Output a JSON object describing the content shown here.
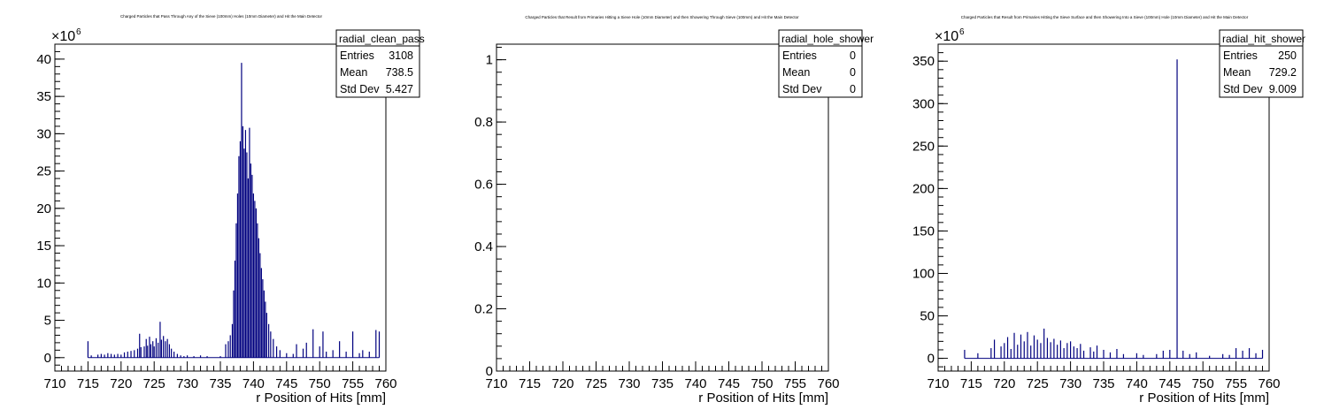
{
  "chart_data": [
    {
      "type": "bar",
      "title": "Charged Particles that Pass Through Any of the Sieve (100mm) Holes (10mm Diameter) and Hit the Main Detector",
      "xlabel": "r Position of Hits [mm]",
      "ylabel": "",
      "multiplier_label": "×10",
      "multiplier_exp": "6",
      "xlim": [
        710,
        760
      ],
      "ylim": [
        -1.8,
        42
      ],
      "x_ticks": [
        "710",
        "715",
        "720",
        "725",
        "730",
        "735",
        "740",
        "745",
        "750",
        "755",
        "760"
      ],
      "y_ticks": [
        "0",
        "5",
        "10",
        "15",
        "20",
        "25",
        "30",
        "35",
        "40"
      ],
      "stats": {
        "name": "radial_clean_pass",
        "rows": [
          {
            "label": "Entries",
            "value": "3108"
          },
          {
            "label": "Mean",
            "value": "738.5"
          },
          {
            "label": "Std Dev",
            "value": "5.427"
          }
        ]
      },
      "bins": [
        [
          715.0,
          2.2
        ],
        [
          715.5,
          0.3
        ],
        [
          716.5,
          0.4
        ],
        [
          717.0,
          0.5
        ],
        [
          717.5,
          0.4
        ],
        [
          718.0,
          0.6
        ],
        [
          718.5,
          0.5
        ],
        [
          719.0,
          0.4
        ],
        [
          719.5,
          0.5
        ],
        [
          720.0,
          0.4
        ],
        [
          720.5,
          0.7
        ],
        [
          721.0,
          0.8
        ],
        [
          721.5,
          0.9
        ],
        [
          722.0,
          1.0
        ],
        [
          722.5,
          1.2
        ],
        [
          722.8,
          3.2
        ],
        [
          723.0,
          1.4
        ],
        [
          723.5,
          1.5
        ],
        [
          723.8,
          2.5
        ],
        [
          724.0,
          1.6
        ],
        [
          724.3,
          2.8
        ],
        [
          724.5,
          1.8
        ],
        [
          724.8,
          2.2
        ],
        [
          725.0,
          1.5
        ],
        [
          725.3,
          2.6
        ],
        [
          725.6,
          2.0
        ],
        [
          725.9,
          4.8
        ],
        [
          726.1,
          2.4
        ],
        [
          726.4,
          2.9
        ],
        [
          726.7,
          2.2
        ],
        [
          727.0,
          2.5
        ],
        [
          727.3,
          1.8
        ],
        [
          727.6,
          1.2
        ],
        [
          728.0,
          0.8
        ],
        [
          728.5,
          0.5
        ],
        [
          729.0,
          0.3
        ],
        [
          729.5,
          0.2
        ],
        [
          730.0,
          0.3
        ],
        [
          731.0,
          0.2
        ],
        [
          732.0,
          0.3
        ],
        [
          733.0,
          0.2
        ],
        [
          735.0,
          0.2
        ],
        [
          735.8,
          1.8
        ],
        [
          736.2,
          2.2
        ],
        [
          736.5,
          3.0
        ],
        [
          736.8,
          4.5
        ],
        [
          737.0,
          9.0
        ],
        [
          737.2,
          13.0
        ],
        [
          737.4,
          18.0
        ],
        [
          737.6,
          22.0
        ],
        [
          737.8,
          27.0
        ],
        [
          738.0,
          29.0
        ],
        [
          738.2,
          39.5
        ],
        [
          738.4,
          31.0
        ],
        [
          738.6,
          28.0
        ],
        [
          738.8,
          30.5
        ],
        [
          739.0,
          27.5
        ],
        [
          739.2,
          24.0
        ],
        [
          739.4,
          30.8
        ],
        [
          739.6,
          26.0
        ],
        [
          739.8,
          24.5
        ],
        [
          740.0,
          22.0
        ],
        [
          740.2,
          21.0
        ],
        [
          740.4,
          20.0
        ],
        [
          740.6,
          18.0
        ],
        [
          740.8,
          16.0
        ],
        [
          741.0,
          14.0
        ],
        [
          741.2,
          12.0
        ],
        [
          741.4,
          10.5
        ],
        [
          741.6,
          9.0
        ],
        [
          741.8,
          7.5
        ],
        [
          742.0,
          6.0
        ],
        [
          742.3,
          4.5
        ],
        [
          742.6,
          3.5
        ],
        [
          743.0,
          2.5
        ],
        [
          743.5,
          1.5
        ],
        [
          744.0,
          1.0
        ],
        [
          745.0,
          0.6
        ],
        [
          746.0,
          0.5
        ],
        [
          746.5,
          1.8
        ],
        [
          747.5,
          1.2
        ],
        [
          748.0,
          2.0
        ],
        [
          749.0,
          3.8
        ],
        [
          750.0,
          1.5
        ],
        [
          750.5,
          3.5
        ],
        [
          751.0,
          0.8
        ],
        [
          752.0,
          1.0
        ],
        [
          753.0,
          2.2
        ],
        [
          754.0,
          0.8
        ],
        [
          755.0,
          3.5
        ],
        [
          756.0,
          0.6
        ],
        [
          756.5,
          1.0
        ],
        [
          757.5,
          0.8
        ],
        [
          758.5,
          3.7
        ],
        [
          759.0,
          3.5
        ]
      ]
    },
    {
      "type": "bar",
      "title": "Charged Particles that Result from Primaries Hitting a Sieve Hole (10mm Diameter) and then Showering Through Sieve (100mm) and Hit the Main Detector",
      "xlabel": "r Position of Hits [mm]",
      "ylabel": "",
      "multiplier_label": "",
      "multiplier_exp": "",
      "xlim": [
        710,
        760
      ],
      "ylim": [
        0,
        1.05
      ],
      "x_ticks": [
        "710",
        "715",
        "720",
        "725",
        "730",
        "735",
        "740",
        "745",
        "750",
        "755",
        "760"
      ],
      "y_ticks": [
        "0",
        "0.2",
        "0.4",
        "0.6",
        "0.8",
        "1"
      ],
      "stats": {
        "name": "radial_hole_shower",
        "rows": [
          {
            "label": "Entries",
            "value": "0"
          },
          {
            "label": "Mean",
            "value": "0"
          },
          {
            "label": "Std Dev",
            "value": "0"
          }
        ]
      },
      "bins": []
    },
    {
      "type": "bar",
      "title": "Charged Particles that Result from Primaries Hitting the Sieve Surface and then Showering Into a Sieve (100mm) Hole (10mm Diameter) and Hit the Main Detector",
      "xlabel": "r Position of Hits [mm]",
      "ylabel": "",
      "multiplier_label": "×10",
      "multiplier_exp": "6",
      "xlim": [
        710,
        760
      ],
      "ylim": [
        -15,
        370
      ],
      "x_ticks": [
        "710",
        "715",
        "720",
        "725",
        "730",
        "735",
        "740",
        "745",
        "750",
        "755",
        "760"
      ],
      "y_ticks": [
        "0",
        "50",
        "100",
        "150",
        "200",
        "250",
        "300",
        "350"
      ],
      "stats": {
        "name": "radial_hit_shower",
        "rows": [
          {
            "label": "Entries",
            "value": "250"
          },
          {
            "label": "Mean",
            "value": "729.2"
          },
          {
            "label": "Std Dev",
            "value": "9.009"
          }
        ]
      },
      "bins": [
        [
          714.0,
          10
        ],
        [
          716.0,
          6
        ],
        [
          718.0,
          12
        ],
        [
          718.5,
          22
        ],
        [
          719.5,
          14
        ],
        [
          720.0,
          18
        ],
        [
          720.5,
          25
        ],
        [
          721.0,
          11
        ],
        [
          721.5,
          30
        ],
        [
          722.0,
          16
        ],
        [
          722.5,
          28
        ],
        [
          723.0,
          20
        ],
        [
          723.5,
          31
        ],
        [
          724.0,
          15
        ],
        [
          724.5,
          27
        ],
        [
          725.0,
          22
        ],
        [
          725.5,
          18
        ],
        [
          726.0,
          35
        ],
        [
          726.5,
          24
        ],
        [
          727.0,
          19
        ],
        [
          727.5,
          23
        ],
        [
          728.0,
          16
        ],
        [
          728.5,
          21
        ],
        [
          729.0,
          12
        ],
        [
          729.5,
          18
        ],
        [
          730.0,
          20
        ],
        [
          730.5,
          14
        ],
        [
          731.0,
          12
        ],
        [
          731.5,
          17
        ],
        [
          732.0,
          9
        ],
        [
          733.0,
          13
        ],
        [
          733.5,
          8
        ],
        [
          734.0,
          15
        ],
        [
          735.0,
          10
        ],
        [
          736.0,
          7
        ],
        [
          737.0,
          11
        ],
        [
          738.0,
          5
        ],
        [
          740.0,
          6
        ],
        [
          741.0,
          4
        ],
        [
          743.0,
          5
        ],
        [
          744.0,
          9
        ],
        [
          745.0,
          10
        ],
        [
          746.1,
          352
        ],
        [
          747.0,
          9
        ],
        [
          748.0,
          5
        ],
        [
          749.0,
          7
        ],
        [
          751.0,
          3
        ],
        [
          753.0,
          5
        ],
        [
          754.0,
          4
        ],
        [
          755.0,
          12
        ],
        [
          756.0,
          9
        ],
        [
          757.0,
          12
        ],
        [
          758.0,
          6
        ],
        [
          759.0,
          10
        ]
      ]
    }
  ]
}
